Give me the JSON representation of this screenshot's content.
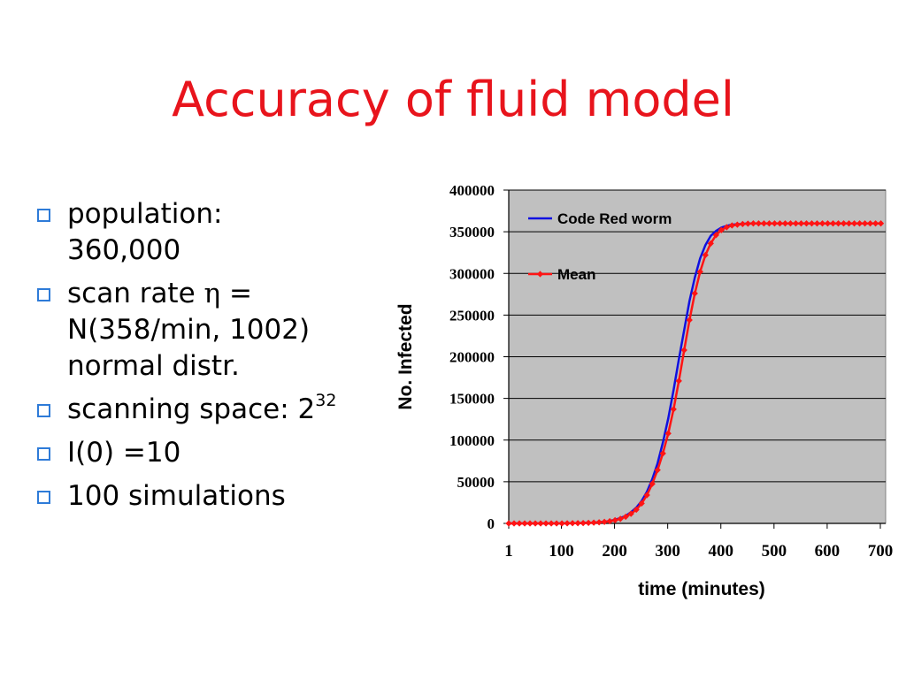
{
  "slide": {
    "title": "Accuracy of fluid model",
    "bullets": {
      "population": [
        "population:",
        "360,000"
      ],
      "scan_rate": [
        "scan rate ",
        "η",
        " =",
        "N(358/min, 1002)",
        "normal distr."
      ],
      "scanning_space": [
        "scanning space: 2",
        "32"
      ],
      "initial": "I(0) =10",
      "simulations": "100 simulations"
    }
  },
  "colors": {
    "title": "#e8141c",
    "bullet_icon": "#2e7bd8",
    "plot_background": "#c0c0c0",
    "code_red_line": "#1010e0",
    "mean_line": "#ff1414"
  },
  "chart_data": {
    "type": "line",
    "title": "",
    "xlabel": "time (minutes)",
    "ylabel": "No. Infected",
    "xlim": [
      1,
      710
    ],
    "ylim": [
      0,
      400000
    ],
    "x_ticks": [
      1,
      100,
      200,
      300,
      400,
      500,
      600,
      700
    ],
    "x_tick_labels": [
      "1",
      "100",
      "200",
      "300",
      "400",
      "500",
      "600",
      "700"
    ],
    "y_ticks": [
      0,
      50000,
      100000,
      150000,
      200000,
      250000,
      300000,
      350000,
      400000
    ],
    "y_tick_labels": [
      "0",
      "50000",
      "100000",
      "150000",
      "200000",
      "250000",
      "300000",
      "350000",
      "400000"
    ],
    "grid": "horizontal",
    "legend_position": "top-left",
    "x": [
      1,
      11,
      21,
      31,
      41,
      51,
      61,
      71,
      81,
      91,
      101,
      111,
      121,
      131,
      141,
      151,
      161,
      171,
      181,
      191,
      201,
      211,
      221,
      231,
      241,
      251,
      261,
      271,
      281,
      291,
      301,
      311,
      321,
      331,
      341,
      351,
      361,
      371,
      381,
      391,
      401,
      411,
      421,
      431,
      441,
      451,
      461,
      471,
      481,
      491,
      501,
      511,
      521,
      531,
      541,
      551,
      561,
      571,
      581,
      591,
      601,
      611,
      621,
      631,
      641,
      651,
      661,
      671,
      681,
      691,
      701
    ],
    "series": [
      {
        "name": "Code Red worm",
        "marker": "none",
        "values": [
          0,
          0,
          0,
          0,
          0,
          0,
          0,
          0,
          0,
          0,
          0,
          100,
          200,
          300,
          500,
          700,
          1000,
          1500,
          2000,
          3000,
          4500,
          6500,
          9000,
          13500,
          19000,
          27000,
          38000,
          53000,
          72000,
          97000,
          126000,
          160000,
          197000,
          232000,
          267000,
          295000,
          318000,
          334000,
          345000,
          351000,
          355000,
          357000,
          358500,
          359000,
          359500,
          360000,
          360000,
          360000,
          360000,
          360000,
          360000,
          360000,
          360000,
          360000,
          360000,
          360000,
          360000,
          360000,
          360000,
          360000,
          360000,
          360000,
          360000,
          360000,
          360000,
          360000,
          360000,
          360000,
          360000,
          360000,
          360000
        ]
      },
      {
        "name": "Mean",
        "marker": "diamond",
        "values": [
          0,
          0,
          0,
          0,
          0,
          0,
          0,
          0,
          0,
          0,
          0,
          100,
          200,
          300,
          400,
          600,
          900,
          1300,
          1800,
          2600,
          3800,
          5500,
          8000,
          11500,
          16500,
          24000,
          34000,
          47500,
          64000,
          84000,
          108000,
          137000,
          171000,
          208000,
          244000,
          276000,
          302000,
          322000,
          336000,
          346000,
          352000,
          355500,
          357500,
          358500,
          359300,
          359700,
          360000,
          360000,
          360000,
          360000,
          360000,
          360000,
          360000,
          360000,
          360000,
          360000,
          360000,
          360000,
          360000,
          360000,
          360000,
          360000,
          360000,
          360000,
          360000,
          360000,
          360000,
          360000,
          360000,
          360000,
          360000
        ]
      }
    ]
  }
}
